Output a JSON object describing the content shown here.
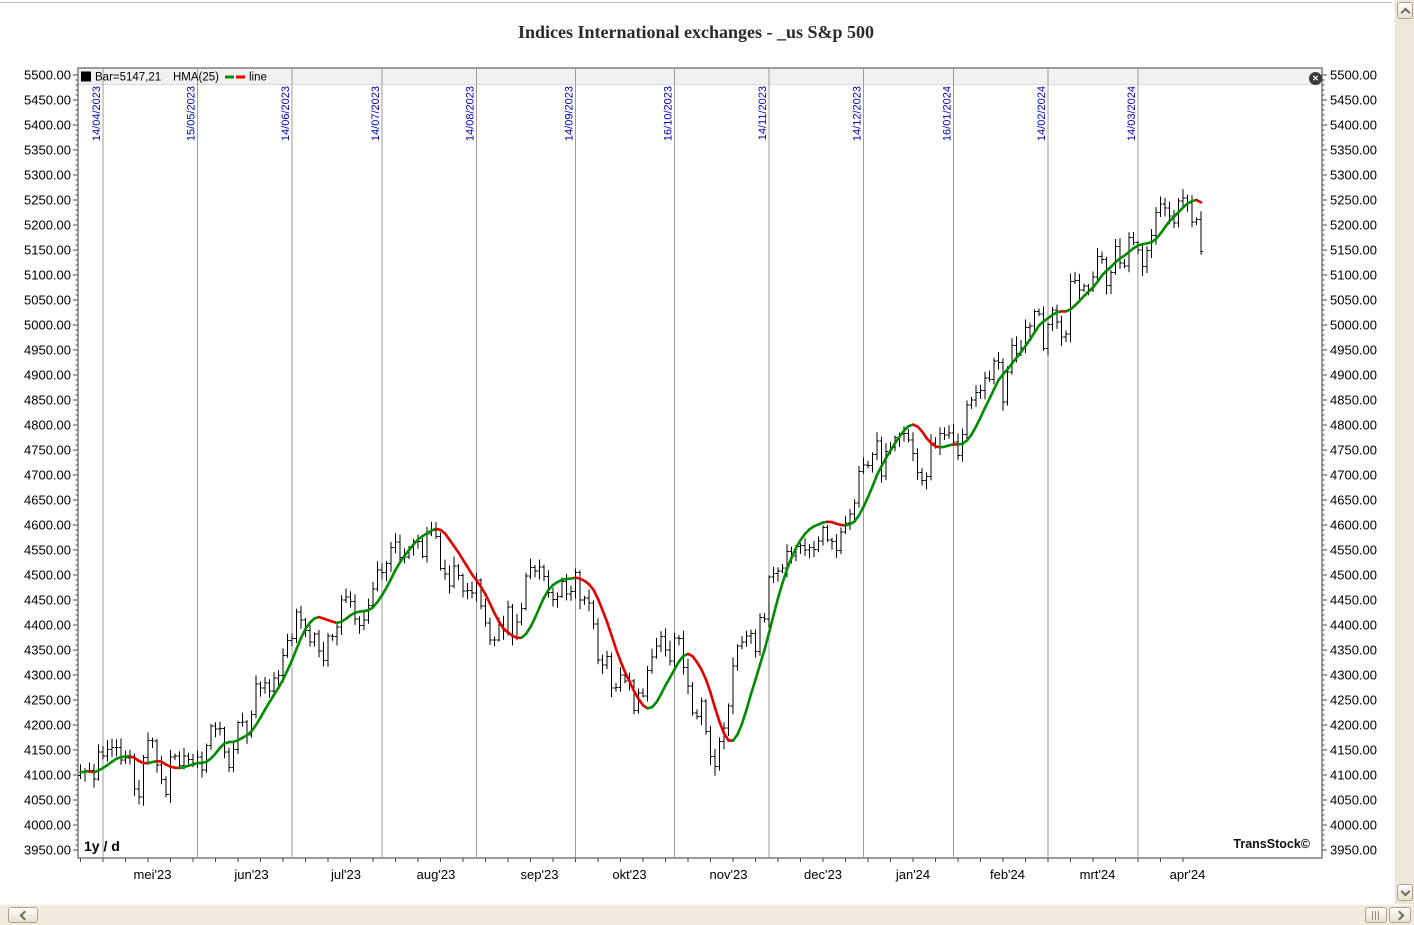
{
  "header": {
    "title": "Indices International exchanges - _us S&p 500"
  },
  "legend": {
    "bar_label": "Bar=5147,21",
    "hma_label": "HMA(25)",
    "line_label": "line",
    "bar_swatch_color": "#000000"
  },
  "footer": {
    "range_label": "1y / d",
    "brand": "TransStock©"
  },
  "close_button": {
    "glyph": "✕"
  },
  "chart_data": {
    "type": "bar",
    "subtype": "ohlc-daily",
    "symbol": "_us S&p 500",
    "timeframe": "1y / d",
    "last_close": "5147,21",
    "ylim": [
      3950,
      5500
    ],
    "ytick_step": 50,
    "ytick_minor_step": 10,
    "ytick_decimals": 2,
    "hma_period": 25,
    "colors": {
      "bar": "#000000",
      "hma_up": "#008c00",
      "hma_down": "#e60000",
      "grid": "#9b9b9b",
      "date_label": "#0000b4",
      "axis_text": "#000000",
      "plot_border": "#5a5a5a",
      "legend_bg": "#f1f1f1",
      "tick": "#444444"
    },
    "closes": [
      4105,
      4109,
      4109,
      4092,
      4146,
      4138,
      4151,
      4155,
      4155,
      4130,
      4134,
      4137,
      4072,
      4056,
      4135,
      4169,
      4168,
      4120,
      4091,
      4061,
      4136,
      4138,
      4119,
      4138,
      4131,
      4124,
      4136,
      4110,
      4159,
      4198,
      4192,
      4193,
      4146,
      4115,
      4151,
      4205,
      4206,
      4180,
      4221,
      4282,
      4274,
      4284,
      4268,
      4294,
      4299,
      4339,
      4369,
      4373,
      4426,
      4410,
      4389,
      4366,
      4382,
      4348,
      4329,
      4378,
      4377,
      4396,
      4450,
      4456,
      4447,
      4412,
      4399,
      4410,
      4439,
      4472,
      4510,
      4505,
      4523,
      4555,
      4566,
      4535,
      4536,
      4555,
      4567,
      4567,
      4537,
      4582,
      4589,
      4577,
      4513,
      4502,
      4478,
      4518,
      4499,
      4468,
      4469,
      4464,
      4490,
      4438,
      4404,
      4370,
      4370,
      4400,
      4388,
      4436,
      4376,
      4406,
      4433,
      4498,
      4515,
      4508,
      4516,
      4497,
      4465,
      4451,
      4457,
      4487,
      4462,
      4467,
      4505,
      4450,
      4454,
      4444,
      4402,
      4330,
      4320,
      4337,
      4274,
      4275,
      4300,
      4288,
      4288,
      4229,
      4264,
      4258,
      4309,
      4336,
      4358,
      4377,
      4350,
      4328,
      4374,
      4373,
      4315,
      4278,
      4224,
      4217,
      4248,
      4187,
      4137,
      4117,
      4167,
      4194,
      4238,
      4318,
      4358,
      4366,
      4378,
      4383,
      4347,
      4415,
      4412,
      4496,
      4503,
      4508,
      4514,
      4547,
      4538,
      4557,
      4559,
      4550,
      4555,
      4551,
      4568,
      4595,
      4570,
      4567,
      4549,
      4586,
      4604,
      4622,
      4644,
      4707,
      4720,
      4719,
      4741,
      4768,
      4698,
      4747,
      4755,
      4775,
      4782,
      4783,
      4770,
      4743,
      4705,
      4689,
      4697,
      4764,
      4757,
      4783,
      4780,
      4784,
      4766,
      4739,
      4781,
      4840,
      4850,
      4865,
      4869,
      4894,
      4891,
      4928,
      4925,
      4846,
      4906,
      4959,
      4943,
      4954,
      4995,
      4998,
      5027,
      5022,
      4953,
      5001,
      5030,
      5006,
      4976,
      4982,
      5087,
      5089,
      5070,
      5078,
      5070,
      5096,
      5137,
      5131,
      5079,
      5105,
      5157,
      5124,
      5118,
      5175,
      5165,
      5150,
      5117,
      5149,
      5179,
      5225,
      5242,
      5234,
      5218,
      5204,
      5248,
      5254,
      5244,
      5206,
      5211,
      5147
    ],
    "gridlines": [
      {
        "index": 5,
        "label": "14/04/2023"
      },
      {
        "index": 26,
        "label": "15/05/2023"
      },
      {
        "index": 47,
        "label": "14/06/2023"
      },
      {
        "index": 67,
        "label": "14/07/2023"
      },
      {
        "index": 88,
        "label": "14/08/2023"
      },
      {
        "index": 110,
        "label": "14/09/2023"
      },
      {
        "index": 132,
        "label": "16/10/2023"
      },
      {
        "index": 153,
        "label": "14/11/2023"
      },
      {
        "index": 174,
        "label": "14/12/2023"
      },
      {
        "index": 194,
        "label": "16/01/2024"
      },
      {
        "index": 215,
        "label": "14/02/2024"
      },
      {
        "index": 235,
        "label": "14/03/2024"
      }
    ],
    "months": [
      {
        "index": 16,
        "label": "mei'23"
      },
      {
        "index": 38,
        "label": "jun'23"
      },
      {
        "index": 59,
        "label": "jul'23"
      },
      {
        "index": 79,
        "label": "aug'23"
      },
      {
        "index": 102,
        "label": "sep'23"
      },
      {
        "index": 122,
        "label": "okt'23"
      },
      {
        "index": 144,
        "label": "nov'23"
      },
      {
        "index": 165,
        "label": "dec'23"
      },
      {
        "index": 185,
        "label": "jan'24"
      },
      {
        "index": 206,
        "label": "feb'24"
      },
      {
        "index": 226,
        "label": "mrt'24"
      },
      {
        "index": 246,
        "label": "apr'24"
      }
    ]
  }
}
